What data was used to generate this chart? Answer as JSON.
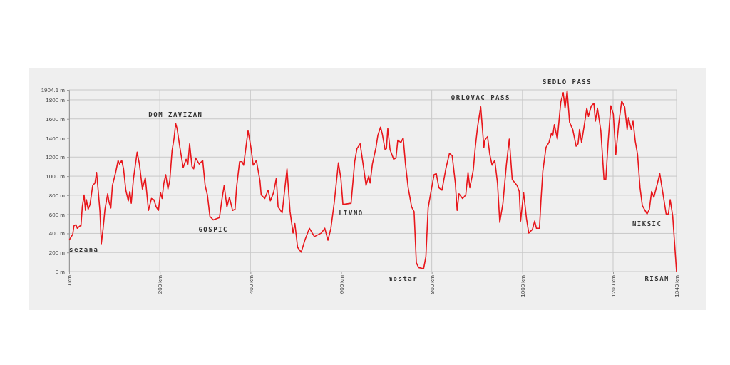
{
  "chart_data": {
    "type": "line",
    "xlim": [
      0,
      1340
    ],
    "ylim": [
      0,
      1904.1
    ],
    "xticks": [
      {
        "value": 0,
        "label": "0 km"
      },
      {
        "value": 200,
        "label": "200 km"
      },
      {
        "value": 400,
        "label": "400 km"
      },
      {
        "value": 600,
        "label": "600 km"
      },
      {
        "value": 800,
        "label": "800 km"
      },
      {
        "value": 1000,
        "label": "1000 km"
      },
      {
        "value": 1200,
        "label": "1200 km"
      },
      {
        "value": 1340,
        "label": "1340 km"
      }
    ],
    "yticks": [
      {
        "value": 0,
        "label": "0 m"
      },
      {
        "value": 200,
        "label": "200 m"
      },
      {
        "value": 400,
        "label": "400 m"
      },
      {
        "value": 600,
        "label": "600 m"
      },
      {
        "value": 800,
        "label": "800 m"
      },
      {
        "value": 1000,
        "label": "1000 m"
      },
      {
        "value": 1200,
        "label": "1200 m"
      },
      {
        "value": 1400,
        "label": "1400 m"
      },
      {
        "value": 1600,
        "label": "1600 m"
      },
      {
        "value": 1800,
        "label": "1800 m"
      },
      {
        "value": 1904.1,
        "label": "1904.1 m"
      }
    ],
    "grid": true,
    "marker": "none",
    "line_style": "solid",
    "annotations": [
      {
        "text": "sezana",
        "x": 0,
        "y": 329
      },
      {
        "text": "DOM ZAVIZAN",
        "x": 235,
        "y": 1551
      },
      {
        "text": "GOSPIC",
        "x": 318,
        "y": 541
      },
      {
        "text": "LIVNO",
        "x": 622,
        "y": 716
      },
      {
        "text": "mostar",
        "x": 782,
        "y": 30
      },
      {
        "text": "ORLOVAC PASS",
        "x": 908,
        "y": 1726
      },
      {
        "text": "SEDLO PASS",
        "x": 1098.7,
        "y": 1895
      },
      {
        "text": "NIKSIC",
        "x": 1275,
        "y": 603
      },
      {
        "text": "RISAN",
        "x": 1340,
        "y": 0
      }
    ],
    "series": [
      {
        "color": "#e8161b",
        "x": [
          0,
          8,
          10.5,
          15,
          18,
          24,
          26,
          29,
          33,
          36,
          38,
          42,
          46,
          52,
          57,
          60.5,
          64,
          68,
          71,
          75,
          79,
          85,
          88,
          92,
          95.5,
          102.6,
          108,
          111,
          116,
          120,
          125,
          130.5,
          134,
          137,
          142,
          150,
          155,
          161.6,
          168,
          175,
          181.6,
          187,
          192,
          197,
          201.6,
          205,
          209,
          213,
          218,
          222,
          227,
          231.6,
          235,
          238,
          244.7,
          251.6,
          258,
          262,
          265.8,
          271,
          274.7,
          279,
          287,
          294.7,
          300,
          305,
          310.5,
          318,
          331.6,
          337,
          342,
          348,
          353.7,
          360.5,
          366,
          369.5,
          376,
          381.6,
          385,
          394.7,
          401,
          406,
          413,
          421,
          423.7,
          431.6,
          439,
          444,
          451,
          457,
          461,
          470,
          480.6,
          487.4,
          494,
          498,
          504,
          512,
          520,
          530,
          541,
          556.5,
          564,
          571,
          577.5,
          585,
          594,
          599.5,
          604,
          622,
          630,
          635,
          642,
          650,
          655,
          661,
          664,
          669,
          677,
          681,
          687,
          691,
          697,
          700,
          703,
          708,
          716,
          721,
          725,
          732,
          737,
          742,
          748,
          755.5,
          761,
          766,
          771,
          782,
          787,
          792,
          797,
          805,
          810,
          815.7,
          822.5,
          831,
          839,
          845,
          852,
          856,
          860,
          868,
          875,
          880,
          884,
          891.6,
          896,
          901,
          908,
          915,
          917,
          923,
          928,
          933,
          939,
          945,
          950,
          957,
          964.5,
          971,
          977.5,
          988,
          993,
          996,
          1002.6,
          1009,
          1014,
          1022,
          1027,
          1031,
          1037.6,
          1041,
          1045,
          1052,
          1058.5,
          1064,
          1067,
          1070.5,
          1077,
          1084.6,
          1090,
          1094,
          1098.7,
          1104,
          1111,
          1118.5,
          1122.7,
          1126,
          1130.5,
          1137,
          1142,
          1145.7,
          1152,
          1157.7,
          1161,
          1165.5,
          1173,
          1180,
          1184,
          1189,
          1195,
          1200.5,
          1206,
          1212.5,
          1219,
          1225.6,
          1231,
          1234,
          1240,
          1244,
          1249,
          1254,
          1259.5,
          1264.5,
          1275,
          1280,
          1285,
          1290,
          1298,
          1303,
          1311.7,
          1317,
          1322,
          1326,
          1331.6,
          1340
        ],
        "values": [
          329,
          391,
          479,
          491,
          454,
          479,
          479,
          678,
          803,
          641,
          753,
          653,
          703,
          903,
          928,
          1040,
          853,
          628,
          292,
          454,
          653,
          815,
          728,
          666,
          903,
          1040,
          1165,
          1127,
          1165,
          1077,
          853,
          741,
          840,
          716,
          978,
          1252,
          1127,
          865,
          983,
          641,
          766,
          753,
          678,
          641,
          828,
          766,
          928,
          1015,
          865,
          953,
          1264,
          1401,
          1551,
          1501,
          1289,
          1090,
          1177,
          1127,
          1339,
          1102,
          1077,
          1190,
          1127,
          1165,
          903,
          803,
          579,
          541,
          566,
          753,
          903,
          678,
          778,
          641,
          653,
          890,
          1152,
          1152,
          1115,
          1476,
          1302,
          1115,
          1165,
          953,
          803,
          766,
          853,
          741,
          828,
          978,
          678,
          616,
          1077,
          628,
          404,
          504,
          254,
          204,
          329,
          454,
          367,
          404,
          454,
          329,
          454,
          728,
          1140,
          978,
          703,
          716,
          1152,
          1289,
          1339,
          1077,
          903,
          1002,
          928,
          1127,
          1302,
          1426,
          1514,
          1439,
          1277,
          1289,
          1501,
          1277,
          1177,
          1190,
          1377,
          1352,
          1401,
          1127,
          878,
          678,
          628,
          92,
          42,
          30,
          155,
          666,
          803,
          1015,
          1027,
          878,
          853,
          1077,
          1239,
          1214,
          928,
          641,
          815,
          766,
          803,
          1040,
          878,
          1065,
          1302,
          1514,
          1726,
          1302,
          1377,
          1414,
          1227,
          1115,
          1165,
          928,
          516,
          716,
          1115,
          1389,
          965,
          903,
          840,
          529,
          828,
          554,
          404,
          441,
          529,
          454,
          454,
          753,
          1052,
          1302,
          1352,
          1451,
          1426,
          1539,
          1389,
          1776,
          1875,
          1713,
          1895,
          1564,
          1489,
          1314,
          1339,
          1489,
          1352,
          1551,
          1713,
          1626,
          1738,
          1763,
          1576,
          1713,
          1476,
          965,
          965,
          1352,
          1738,
          1651,
          1227,
          1551,
          1788,
          1726,
          1489,
          1613,
          1489,
          1576,
          1364,
          1227,
          878,
          691,
          603,
          653,
          840,
          778,
          928,
          1027,
          766,
          603,
          603,
          753,
          579,
          0
        ]
      }
    ]
  }
}
